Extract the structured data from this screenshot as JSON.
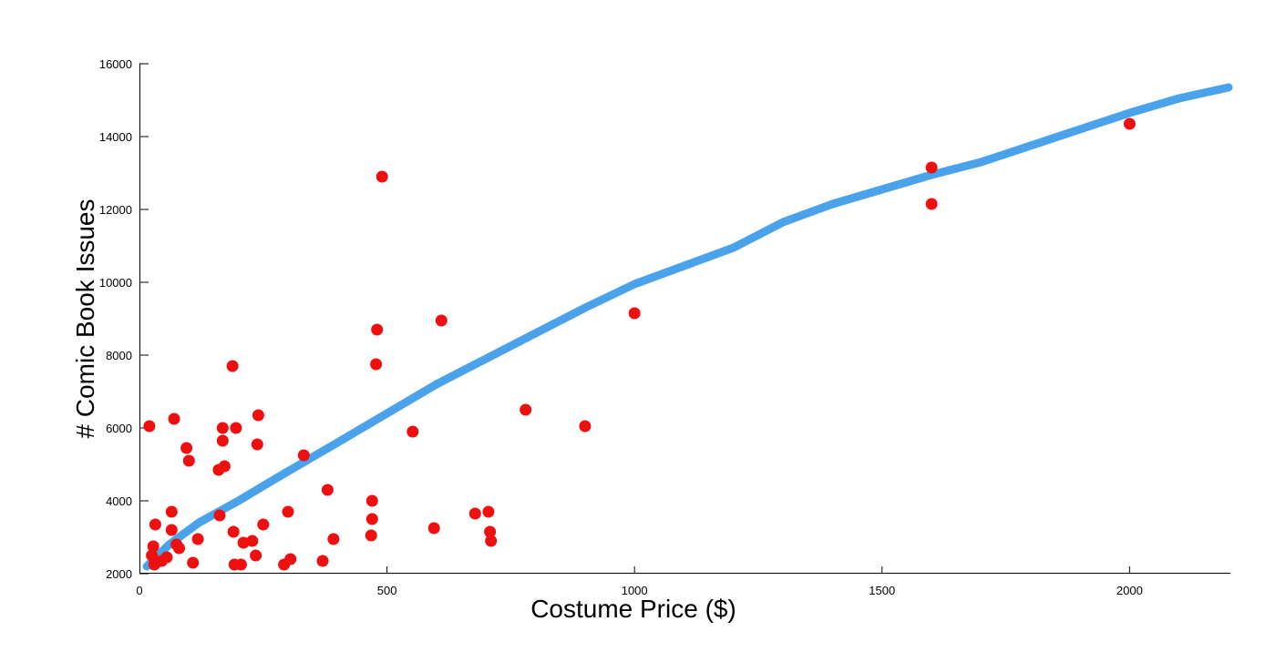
{
  "chart_data": {
    "type": "scatter",
    "title": "",
    "xlabel": "Costume Price ($)",
    "ylabel": "# Comic Book Issues",
    "xlim": [
      0,
      2200
    ],
    "ylim": [
      2000,
      16000
    ],
    "xticks": [
      0,
      500,
      1000,
      1500,
      2000
    ],
    "yticks": [
      2000,
      4000,
      6000,
      8000,
      10000,
      12000,
      14000,
      16000
    ],
    "xtick_labels": [
      "0",
      "500",
      "1000",
      "1500",
      "2000"
    ],
    "ytick_labels": [
      "2000",
      "4000",
      "6000",
      "8000",
      "10000",
      "12000",
      "14000",
      "16000"
    ],
    "grid": false,
    "colors": {
      "points": "#ee0f0f",
      "trend": "#4aa3ea"
    },
    "series": [
      {
        "kind": "scatter",
        "points": [
          [
            20,
            6050
          ],
          [
            25,
            2500
          ],
          [
            28,
            2750
          ],
          [
            30,
            2250
          ],
          [
            32,
            3350
          ],
          [
            45,
            2350
          ],
          [
            55,
            2450
          ],
          [
            65,
            3700
          ],
          [
            65,
            3200
          ],
          [
            70,
            6250
          ],
          [
            75,
            2800
          ],
          [
            80,
            2700
          ],
          [
            95,
            5450
          ],
          [
            100,
            5100
          ],
          [
            108,
            2300
          ],
          [
            118,
            2950
          ],
          [
            160,
            4850
          ],
          [
            162,
            3600
          ],
          [
            168,
            6000
          ],
          [
            168,
            5650
          ],
          [
            172,
            4950
          ],
          [
            188,
            7700
          ],
          [
            190,
            3150
          ],
          [
            192,
            2250
          ],
          [
            195,
            6000
          ],
          [
            205,
            2250
          ],
          [
            210,
            2850
          ],
          [
            228,
            2900
          ],
          [
            235,
            2500
          ],
          [
            238,
            5550
          ],
          [
            240,
            6350
          ],
          [
            250,
            3350
          ],
          [
            292,
            2250
          ],
          [
            300,
            3700
          ],
          [
            305,
            2400
          ],
          [
            332,
            5250
          ],
          [
            370,
            2350
          ],
          [
            380,
            4300
          ],
          [
            392,
            2950
          ],
          [
            468,
            3050
          ],
          [
            470,
            4000
          ],
          [
            470,
            3500
          ],
          [
            478,
            7750
          ],
          [
            480,
            8700
          ],
          [
            490,
            12900
          ],
          [
            552,
            5900
          ],
          [
            595,
            3250
          ],
          [
            610,
            8950
          ],
          [
            678,
            3650
          ],
          [
            705,
            3700
          ],
          [
            708,
            3150
          ],
          [
            710,
            2900
          ],
          [
            780,
            6500
          ],
          [
            900,
            6050
          ],
          [
            1000,
            9150
          ],
          [
            1600,
            13150
          ],
          [
            1600,
            12150
          ],
          [
            2000,
            14350
          ]
        ]
      },
      {
        "kind": "trend-line",
        "points": [
          [
            15,
            2200
          ],
          [
            60,
            2800
          ],
          [
            120,
            3400
          ],
          [
            200,
            4000
          ],
          [
            280,
            4650
          ],
          [
            400,
            5600
          ],
          [
            500,
            6400
          ],
          [
            600,
            7200
          ],
          [
            700,
            7900
          ],
          [
            800,
            8600
          ],
          [
            900,
            9300
          ],
          [
            1000,
            9950
          ],
          [
            1100,
            10450
          ],
          [
            1200,
            10950
          ],
          [
            1300,
            11650
          ],
          [
            1400,
            12150
          ],
          [
            1500,
            12550
          ],
          [
            1600,
            12950
          ],
          [
            1700,
            13300
          ],
          [
            1800,
            13750
          ],
          [
            1900,
            14200
          ],
          [
            2000,
            14650
          ],
          [
            2100,
            15050
          ],
          [
            2200,
            15350
          ]
        ]
      }
    ]
  }
}
